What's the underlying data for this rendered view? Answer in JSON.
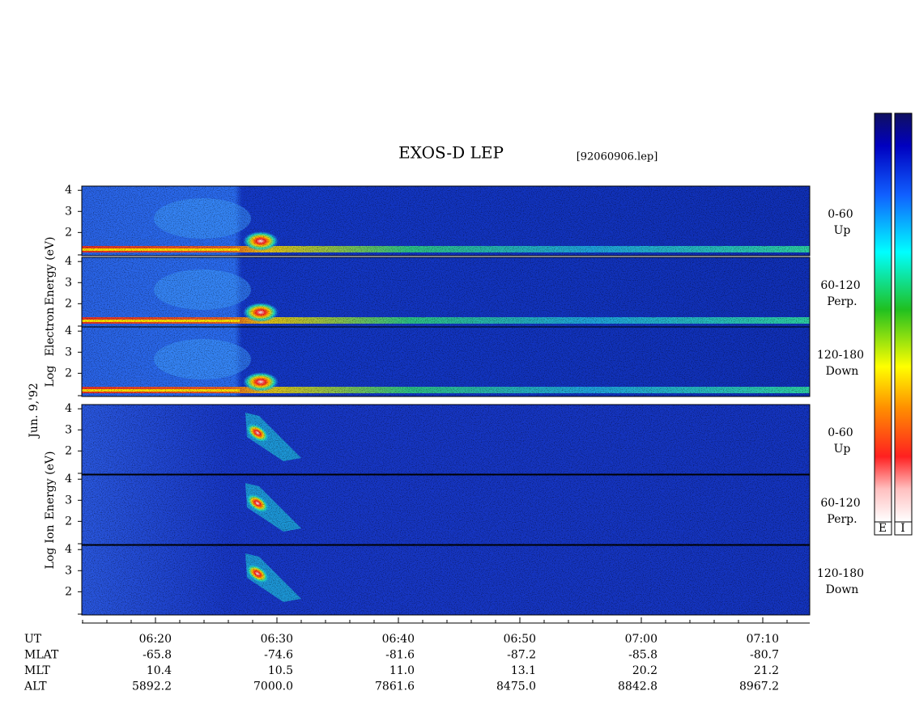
{
  "title": "EXOS-D LEP",
  "file": "[92060906.lep]",
  "date": "Jun. 9,'92",
  "electron_axis_label": [
    "Log",
    "Electron",
    "Energy (eV)"
  ],
  "ion_axis_label": [
    "Log",
    "Ion",
    "Energy (eV)"
  ],
  "energy_ticks": [
    2,
    3,
    4
  ],
  "energy_lim": [
    0.9,
    4.2
  ],
  "panels": [
    {
      "pitch": "0-60",
      "direction": "Up"
    },
    {
      "pitch": "60-120",
      "direction": "Perp."
    },
    {
      "pitch": "120-180",
      "direction": "Down"
    },
    {
      "pitch": "0-60",
      "direction": "Up"
    },
    {
      "pitch": "60-120",
      "direction": "Perp."
    },
    {
      "pitch": "120-180",
      "direction": "Down"
    }
  ],
  "colorbar_labels": [
    "E",
    "I"
  ],
  "orbit_table": {
    "rows": [
      [
        "UT",
        "06:20",
        "06:30",
        "06:40",
        "06:50",
        "07:00",
        "07:10"
      ],
      [
        "MLAT",
        "-65.8",
        "-74.6",
        "-81.6",
        "-87.2",
        "-85.8",
        "-80.7"
      ],
      [
        "MLT",
        "10.4",
        "10.5",
        "11.0",
        "13.1",
        "20.2",
        "21.2"
      ],
      [
        "ALT",
        "5892.2",
        "7000.0",
        "7861.6",
        "8475.0",
        "8842.8",
        "8967.2"
      ]
    ]
  }
}
